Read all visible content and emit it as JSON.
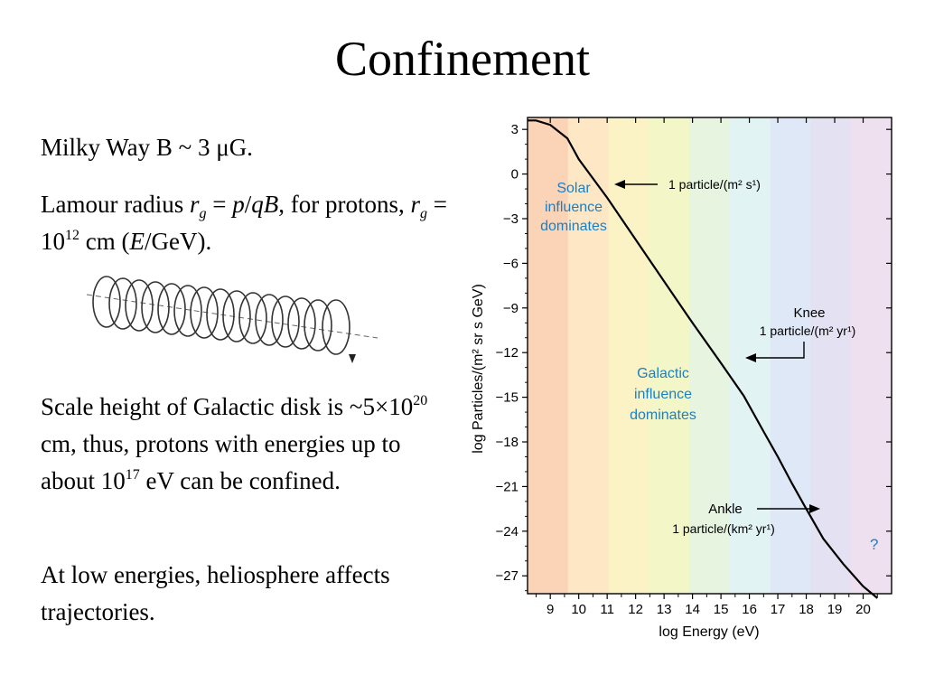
{
  "slide": {
    "title": "Confinement",
    "p1": {
      "text_a": "Milky Way B ~ 3 ",
      "mu": "μ",
      "text_b": "G."
    },
    "p2": {
      "t1": "Lamour radius ",
      "r": "r",
      "g": "g",
      "eq": " = ",
      "p": "p",
      "slash": "/",
      "qB": "qB",
      "t2": ", for protons, ",
      "r2": "r",
      "g2": "g",
      "t3": " = 10",
      "exp": "12",
      "t4": " cm (",
      "E": "E",
      "t5": "/GeV)."
    },
    "p3": {
      "t1": "Scale height of Galactic disk is ~5×10",
      "exp1": "20",
      "t2": " cm, thus, protons with energies up to about 10",
      "exp2": "17",
      "t3": " eV can be confined."
    },
    "p4": {
      "text": "At low energies, heliosphere affects trajectories."
    }
  },
  "chart_data": {
    "type": "line",
    "xlabel": "log Energy (eV)",
    "ylabel": "log Particles/(m² sr s GeV)",
    "xlim": [
      8.2,
      21.0
    ],
    "ylim": [
      -28.2,
      3.8
    ],
    "x_ticks": [
      "9",
      "10",
      "11",
      "12",
      "13",
      "14",
      "15",
      "16",
      "17",
      "18",
      "19",
      "20"
    ],
    "y_ticks": [
      "3",
      "0",
      "−3",
      "−6",
      "−9",
      "−12",
      "−15",
      "−18",
      "−21",
      "−24",
      "−27"
    ],
    "series": [
      {
        "x": [
          8.2,
          8.5,
          9.0,
          9.6,
          10.0,
          11.0,
          12.0,
          13.0,
          14.0,
          15.0,
          15.8,
          16.5,
          17.0,
          17.5,
          18.0,
          18.6,
          19.3,
          20.0,
          20.5
        ],
        "y": [
          3.6,
          3.6,
          3.3,
          2.4,
          1.0,
          -1.6,
          -4.4,
          -7.2,
          -10.0,
          -12.7,
          -14.9,
          -17.3,
          -19.0,
          -20.8,
          -22.5,
          -24.5,
          -26.2,
          -27.7,
          -28.5
        ]
      }
    ],
    "bands": [
      "#fbd3b7",
      "#fde7c4",
      "#fbf3c6",
      "#f3f7c8",
      "#e6f4e0",
      "#e2f3f4",
      "#dfe8f7",
      "#e4e1f3",
      "#eee0ef"
    ],
    "annotations": {
      "solar": [
        "Solar",
        "influence",
        "dominates"
      ],
      "galactic": [
        "Galactic",
        "influence",
        "dominates"
      ],
      "rate1": "1 particle/(m² s¹)",
      "knee": "Knee",
      "rate_knee": "1 particle/(m² yr¹)",
      "ankle": "Ankle",
      "rate_ankle": "1 particle/(km² yr¹)",
      "question": "?"
    },
    "colors": {
      "line": "#000000",
      "annotation_blue": "#1b7fc4",
      "axis": "#000000"
    }
  }
}
